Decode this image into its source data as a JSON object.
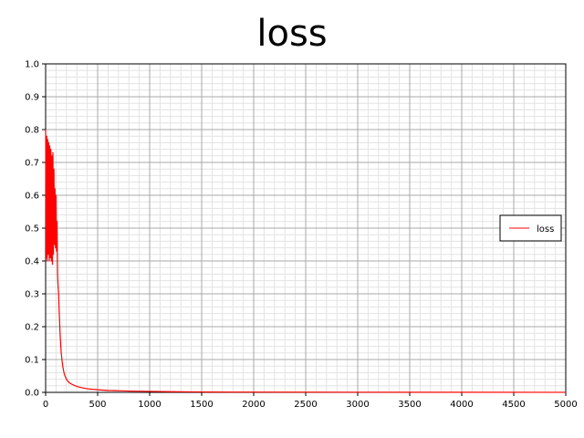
{
  "chart_data": {
    "type": "line",
    "title": "loss",
    "xlabel": "",
    "ylabel": "",
    "xlim": [
      0,
      5000
    ],
    "ylim": [
      0,
      1.0
    ],
    "x_ticks": [
      0,
      500,
      1000,
      1500,
      2000,
      2500,
      3000,
      3500,
      4000,
      4500,
      5000
    ],
    "y_ticks": [
      "0.0",
      "0.1",
      "0.2",
      "0.3",
      "0.4",
      "0.5",
      "0.6",
      "0.7",
      "0.8",
      "0.9",
      "1.0"
    ],
    "grid": true,
    "legend_position": "right",
    "series": [
      {
        "name": "loss",
        "color": "#ff0000",
        "x": [
          0,
          5,
          10,
          15,
          20,
          25,
          30,
          35,
          40,
          45,
          50,
          55,
          60,
          65,
          70,
          75,
          80,
          85,
          90,
          95,
          100,
          105,
          110,
          115,
          120,
          125,
          130,
          140,
          150,
          160,
          170,
          180,
          200,
          225,
          250,
          300,
          350,
          400,
          500,
          600,
          700,
          800,
          1000,
          1200,
          1400,
          1600,
          2000,
          3000,
          4000,
          5000
        ],
        "y": [
          0.8,
          0.41,
          0.78,
          0.4,
          0.77,
          0.42,
          0.76,
          0.4,
          0.75,
          0.41,
          0.74,
          0.4,
          0.72,
          0.39,
          0.73,
          0.42,
          0.68,
          0.45,
          0.62,
          0.44,
          0.6,
          0.43,
          0.52,
          0.36,
          0.32,
          0.3,
          0.25,
          0.17,
          0.12,
          0.09,
          0.07,
          0.055,
          0.04,
          0.03,
          0.025,
          0.018,
          0.014,
          0.011,
          0.008,
          0.006,
          0.005,
          0.004,
          0.003,
          0.002,
          0.0015,
          0.001,
          0.0008,
          0.0005,
          0.0003,
          0.0002
        ]
      }
    ]
  }
}
